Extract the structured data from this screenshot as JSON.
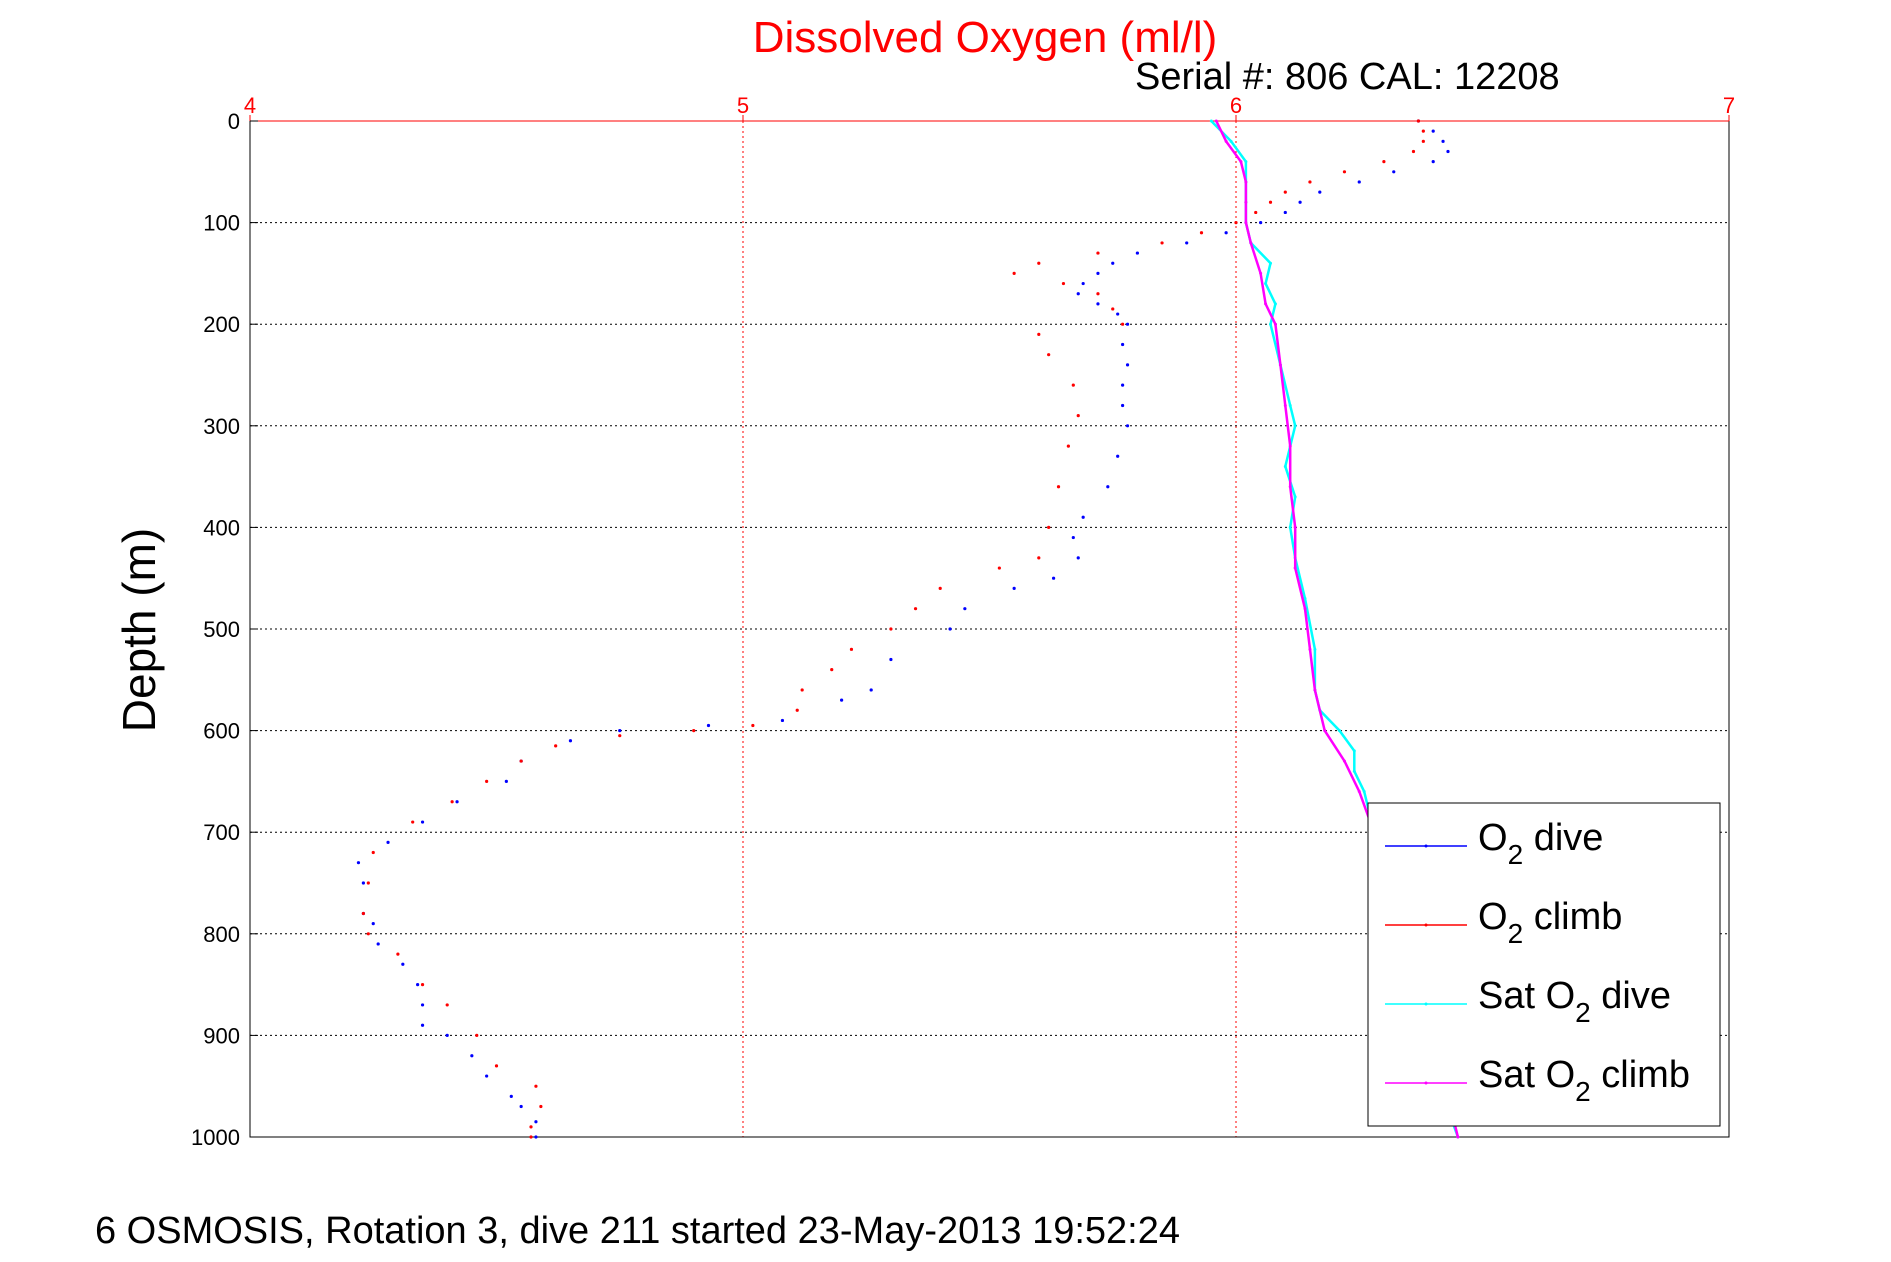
{
  "chart_data": {
    "type": "scatter",
    "title": "Dissolved Oxygen (ml/l)",
    "subtitle": "Serial #: 806  CAL: 12208",
    "footer": "6 OSMOSIS, Rotation 3, dive 211 started 23-May-2013 19:52:24",
    "ylabel": "Depth (m)",
    "xlabel": "",
    "xlim": [
      4,
      7
    ],
    "ylim": [
      0,
      1000
    ],
    "y_reversed": true,
    "x_axis_position": "top",
    "x_ticks": [
      "4",
      "5",
      "6",
      "7"
    ],
    "y_ticks": [
      "0",
      "100",
      "200",
      "300",
      "400",
      "500",
      "600",
      "700",
      "800",
      "900",
      "1000"
    ],
    "grid": true,
    "legend_position": "lower-right",
    "colors": {
      "title": "#ff0000",
      "o2_dive": "#0000ff",
      "o2_climb": "#ff0000",
      "sat_dive": "#00ffff",
      "sat_climb": "#ff00ff"
    },
    "legend": [
      {
        "key": "o2_dive",
        "prefix": "O",
        "sub": "2",
        "suffix": " dive"
      },
      {
        "key": "o2_climb",
        "prefix": "O",
        "sub": "2",
        "suffix": " climb"
      },
      {
        "key": "sat_dive",
        "prefix": "Sat O",
        "sub": "2",
        "suffix": " dive"
      },
      {
        "key": "sat_climb",
        "prefix": "Sat O",
        "sub": "2",
        "suffix": " climb"
      }
    ],
    "series": [
      {
        "key": "o2_dive",
        "style": "dots",
        "points": [
          [
            6.37,
            0
          ],
          [
            6.4,
            10
          ],
          [
            6.42,
            20
          ],
          [
            6.43,
            30
          ],
          [
            6.4,
            40
          ],
          [
            6.32,
            50
          ],
          [
            6.25,
            60
          ],
          [
            6.17,
            70
          ],
          [
            6.13,
            80
          ],
          [
            6.1,
            90
          ],
          [
            6.05,
            100
          ],
          [
            5.98,
            110
          ],
          [
            5.9,
            120
          ],
          [
            5.8,
            130
          ],
          [
            5.75,
            140
          ],
          [
            5.72,
            150
          ],
          [
            5.69,
            160
          ],
          [
            5.68,
            170
          ],
          [
            5.72,
            180
          ],
          [
            5.76,
            190
          ],
          [
            5.78,
            200
          ],
          [
            5.77,
            220
          ],
          [
            5.78,
            240
          ],
          [
            5.77,
            260
          ],
          [
            5.77,
            280
          ],
          [
            5.78,
            300
          ],
          [
            5.76,
            330
          ],
          [
            5.74,
            360
          ],
          [
            5.69,
            390
          ],
          [
            5.67,
            410
          ],
          [
            5.68,
            430
          ],
          [
            5.63,
            450
          ],
          [
            5.55,
            460
          ],
          [
            5.45,
            480
          ],
          [
            5.42,
            500
          ],
          [
            5.3,
            530
          ],
          [
            5.26,
            560
          ],
          [
            5.2,
            570
          ],
          [
            5.08,
            590
          ],
          [
            4.93,
            595
          ],
          [
            4.75,
            600
          ],
          [
            4.65,
            610
          ],
          [
            4.55,
            630
          ],
          [
            4.52,
            650
          ],
          [
            4.42,
            670
          ],
          [
            4.35,
            690
          ],
          [
            4.28,
            710
          ],
          [
            4.22,
            730
          ],
          [
            4.23,
            750
          ],
          [
            4.23,
            780
          ],
          [
            4.25,
            790
          ],
          [
            4.26,
            810
          ],
          [
            4.31,
            830
          ],
          [
            4.34,
            850
          ],
          [
            4.35,
            870
          ],
          [
            4.35,
            890
          ],
          [
            4.4,
            900
          ],
          [
            4.45,
            920
          ],
          [
            4.48,
            940
          ],
          [
            4.53,
            960
          ],
          [
            4.55,
            970
          ],
          [
            4.58,
            985
          ],
          [
            4.58,
            1000
          ]
        ]
      },
      {
        "key": "o2_climb",
        "style": "dots",
        "points": [
          [
            6.37,
            0
          ],
          [
            6.38,
            10
          ],
          [
            6.38,
            20
          ],
          [
            6.36,
            30
          ],
          [
            6.3,
            40
          ],
          [
            6.22,
            50
          ],
          [
            6.15,
            60
          ],
          [
            6.1,
            70
          ],
          [
            6.07,
            80
          ],
          [
            6.04,
            90
          ],
          [
            6.0,
            100
          ],
          [
            5.93,
            110
          ],
          [
            5.85,
            120
          ],
          [
            5.72,
            130
          ],
          [
            5.6,
            140
          ],
          [
            5.55,
            150
          ],
          [
            5.65,
            160
          ],
          [
            5.72,
            170
          ],
          [
            5.75,
            185
          ],
          [
            5.77,
            200
          ],
          [
            5.6,
            210
          ],
          [
            5.62,
            230
          ],
          [
            5.67,
            260
          ],
          [
            5.68,
            290
          ],
          [
            5.66,
            320
          ],
          [
            5.64,
            360
          ],
          [
            5.62,
            400
          ],
          [
            5.6,
            430
          ],
          [
            5.52,
            440
          ],
          [
            5.4,
            460
          ],
          [
            5.35,
            480
          ],
          [
            5.3,
            500
          ],
          [
            5.22,
            520
          ],
          [
            5.18,
            540
          ],
          [
            5.12,
            560
          ],
          [
            5.11,
            580
          ],
          [
            5.02,
            595
          ],
          [
            4.9,
            600
          ],
          [
            4.75,
            605
          ],
          [
            4.62,
            615
          ],
          [
            4.55,
            630
          ],
          [
            4.48,
            650
          ],
          [
            4.41,
            670
          ],
          [
            4.33,
            690
          ],
          [
            4.25,
            720
          ],
          [
            4.24,
            750
          ],
          [
            4.23,
            780
          ],
          [
            4.24,
            800
          ],
          [
            4.3,
            820
          ],
          [
            4.35,
            850
          ],
          [
            4.4,
            870
          ],
          [
            4.46,
            900
          ],
          [
            4.5,
            930
          ],
          [
            4.58,
            950
          ],
          [
            4.59,
            970
          ],
          [
            4.57,
            990
          ],
          [
            4.57,
            1000
          ]
        ]
      },
      {
        "key": "sat_dive",
        "style": "line",
        "points": [
          [
            5.95,
            0
          ],
          [
            5.99,
            20
          ],
          [
            6.02,
            40
          ],
          [
            6.02,
            60
          ],
          [
            6.02,
            80
          ],
          [
            6.02,
            100
          ],
          [
            6.03,
            120
          ],
          [
            6.07,
            140
          ],
          [
            6.06,
            160
          ],
          [
            6.08,
            180
          ],
          [
            6.07,
            200
          ],
          [
            6.09,
            240
          ],
          [
            6.11,
            280
          ],
          [
            6.12,
            300
          ],
          [
            6.1,
            340
          ],
          [
            6.12,
            370
          ],
          [
            6.11,
            400
          ],
          [
            6.12,
            430
          ],
          [
            6.14,
            470
          ],
          [
            6.16,
            520
          ],
          [
            6.16,
            560
          ],
          [
            6.17,
            580
          ],
          [
            6.21,
            600
          ],
          [
            6.24,
            620
          ],
          [
            6.24,
            640
          ],
          [
            6.26,
            660
          ],
          [
            6.28,
            700
          ],
          [
            6.32,
            760
          ],
          [
            6.35,
            820
          ],
          [
            6.39,
            900
          ],
          [
            6.42,
            960
          ],
          [
            6.45,
            1000
          ]
        ]
      },
      {
        "key": "sat_climb",
        "style": "line",
        "points": [
          [
            5.96,
            0
          ],
          [
            5.98,
            20
          ],
          [
            6.01,
            40
          ],
          [
            6.02,
            60
          ],
          [
            6.02,
            80
          ],
          [
            6.02,
            100
          ],
          [
            6.03,
            120
          ],
          [
            6.05,
            150
          ],
          [
            6.06,
            180
          ],
          [
            6.08,
            200
          ],
          [
            6.09,
            240
          ],
          [
            6.1,
            280
          ],
          [
            6.11,
            320
          ],
          [
            6.11,
            360
          ],
          [
            6.12,
            400
          ],
          [
            6.12,
            440
          ],
          [
            6.14,
            480
          ],
          [
            6.15,
            520
          ],
          [
            6.16,
            560
          ],
          [
            6.18,
            600
          ],
          [
            6.22,
            630
          ],
          [
            6.25,
            660
          ],
          [
            6.28,
            700
          ],
          [
            6.32,
            760
          ],
          [
            6.36,
            830
          ],
          [
            6.4,
            900
          ],
          [
            6.43,
            960
          ],
          [
            6.45,
            1000
          ]
        ]
      }
    ]
  }
}
